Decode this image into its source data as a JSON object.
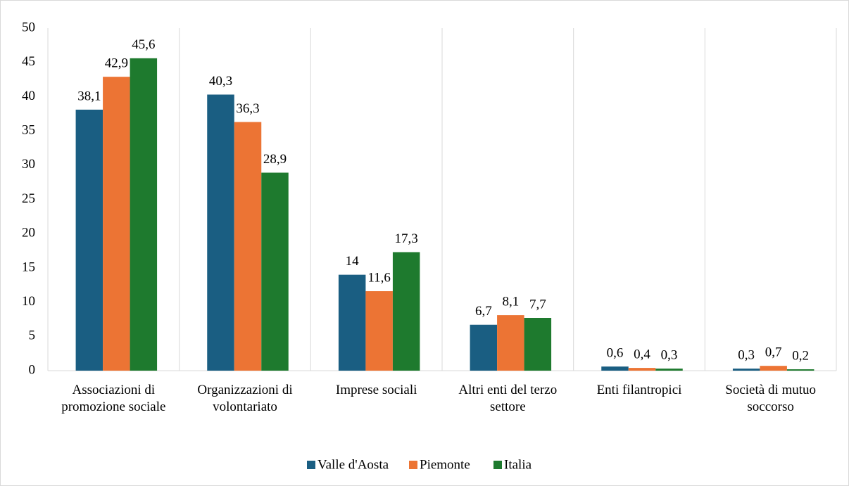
{
  "chart_data": {
    "type": "bar",
    "categories": [
      "Associazioni di promozione sociale",
      "Organizzazioni di volontariato",
      "Imprese sociali",
      "Altri enti del terzo settore",
      "Enti filantropici",
      "Società di mutuo soccorso"
    ],
    "series": [
      {
        "name": "Valle d'Aosta",
        "color": "#1a5e82",
        "values": [
          38.1,
          40.3,
          14,
          6.7,
          0.6,
          0.3
        ],
        "value_labels": [
          "38,1",
          "40,3",
          "14",
          "6,7",
          "0,6",
          "0,3"
        ]
      },
      {
        "name": "Piemonte",
        "color": "#ec7434",
        "values": [
          42.9,
          36.3,
          11.6,
          8.1,
          0.4,
          0.7
        ],
        "value_labels": [
          "42,9",
          "36,3",
          "11,6",
          "8,1",
          "0,4",
          "0,7"
        ]
      },
      {
        "name": "Italia",
        "color": "#1e7a2e",
        "values": [
          45.6,
          28.9,
          17.3,
          7.7,
          0.3,
          0.2
        ],
        "value_labels": [
          "45,6",
          "28,9",
          "17,3",
          "7,7",
          "0,3",
          "0,2"
        ]
      }
    ],
    "ylim": [
      0,
      50
    ],
    "yticks": [
      0,
      5,
      10,
      15,
      20,
      25,
      30,
      35,
      40,
      45,
      50
    ],
    "legend": "bottom"
  }
}
